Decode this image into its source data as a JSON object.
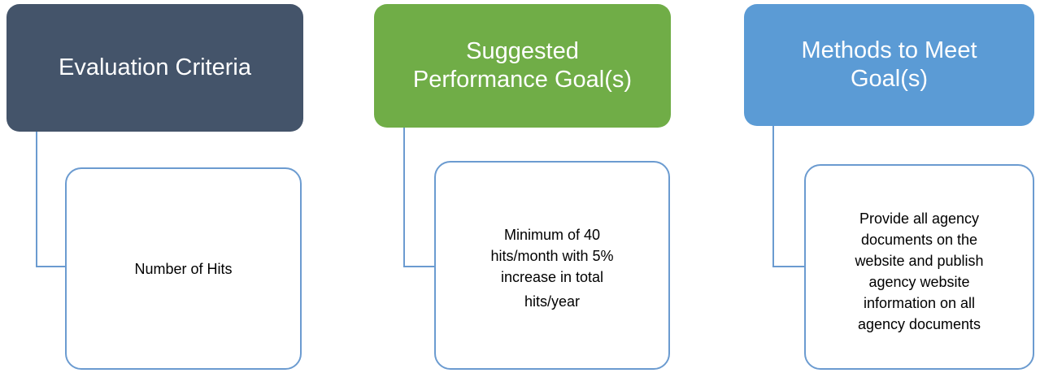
{
  "diagram": {
    "columns": [
      {
        "header": "Evaluation Criteria",
        "header_color": "#44546a",
        "detail_lines": [
          "Number of Hits"
        ]
      },
      {
        "header": "Suggested Performance Goal(s)",
        "header_color": "#70ad47",
        "detail_lines": [
          "Minimum of 40",
          "hits/month with 5%",
          "increase in total",
          "hits/year"
        ]
      },
      {
        "header": "Methods to Meet Goal(s)",
        "header_color": "#5b9bd5",
        "detail_lines": [
          "Provide all agency",
          "documents on the",
          "website and publish",
          "agency website",
          "information on all",
          "agency documents"
        ]
      }
    ],
    "connector_color": "#6b9bd0",
    "detail_border_color": "#6b9bd0"
  }
}
